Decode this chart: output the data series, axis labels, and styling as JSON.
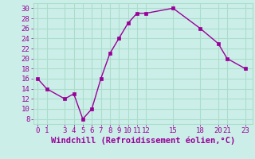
{
  "x": [
    0,
    1,
    3,
    4,
    5,
    6,
    7,
    8,
    9,
    10,
    11,
    12,
    15,
    18,
    20,
    21,
    23
  ],
  "y": [
    16,
    14,
    12,
    13,
    8,
    10,
    16,
    21,
    24,
    27,
    29,
    29,
    30,
    26,
    23,
    20,
    18
  ],
  "line_color": "#990099",
  "marker_color": "#990099",
  "bg_color": "#cceee8",
  "grid_color": "#aaddcc",
  "xlabel": "Windchill (Refroidissement éolien,°C)",
  "xlabel_color": "#990099",
  "ylabel_ticks": [
    8,
    10,
    12,
    14,
    16,
    18,
    20,
    22,
    24,
    26,
    28,
    30
  ],
  "xticks": [
    0,
    1,
    3,
    4,
    5,
    6,
    7,
    8,
    9,
    10,
    11,
    12,
    15,
    18,
    20,
    21,
    23
  ],
  "xlim": [
    -0.5,
    23.8
  ],
  "ylim": [
    7,
    31
  ],
  "tick_color": "#990099",
  "tick_fontsize": 6.5,
  "xlabel_fontsize": 7.5
}
